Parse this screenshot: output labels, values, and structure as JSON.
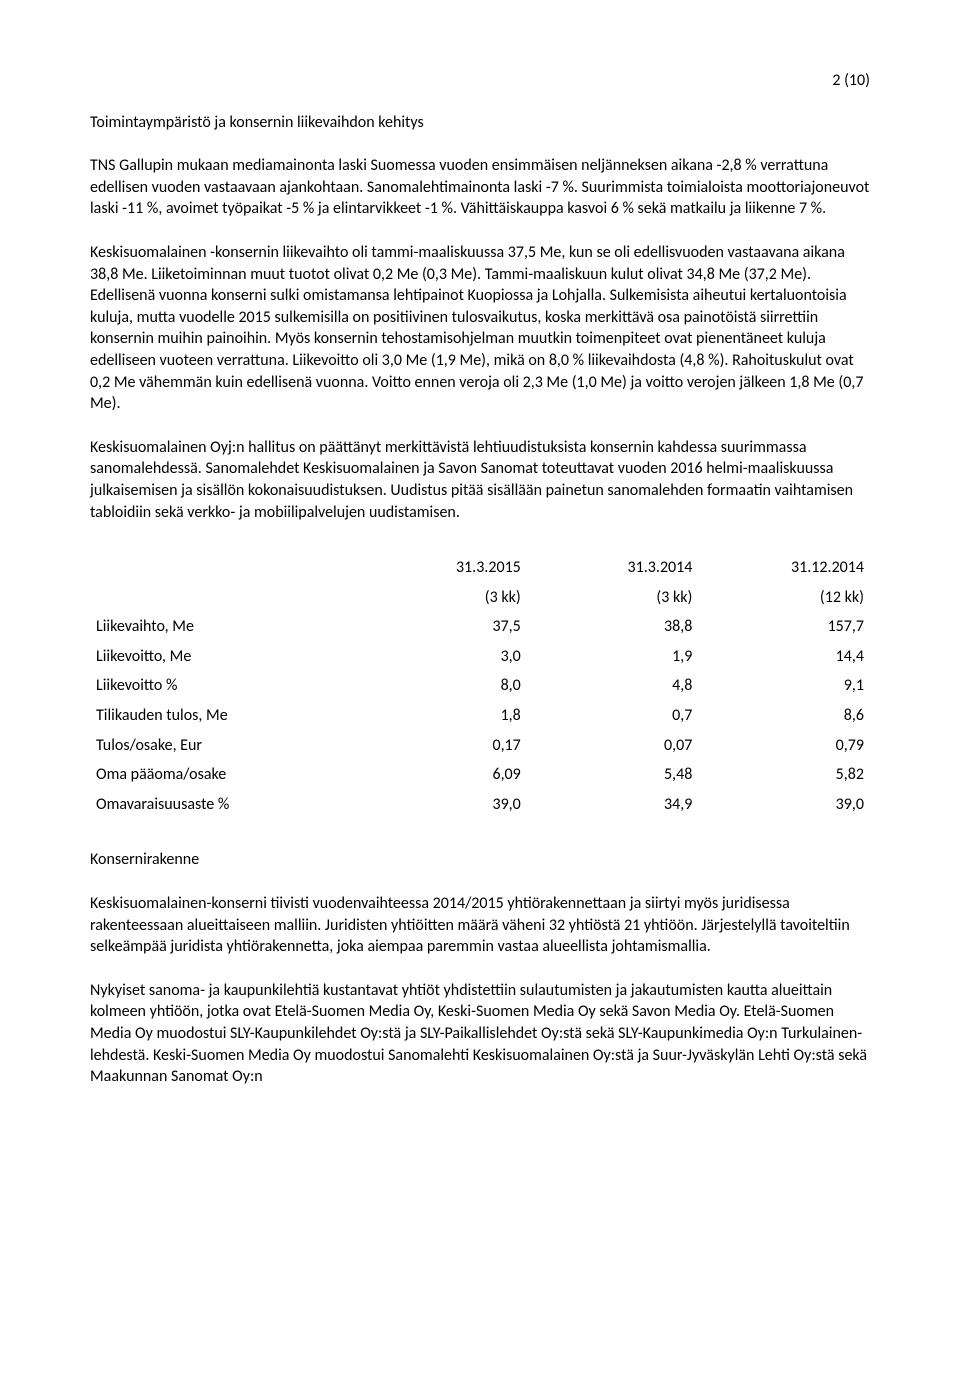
{
  "page_number": "2 (10)",
  "section_title": "Toimintaympäristö ja konsernin liikevaihdon kehitys",
  "paragraphs": {
    "p1": "TNS Gallupin mukaan mediamainonta laski Suomessa vuoden ensimmäisen neljänneksen aikana -2,8 % verrattuna edellisen vuoden vastaavaan ajankohtaan. Sanomalehtimainonta laski -7 %. Suurimmista toimialoista moottoriajoneuvot laski -11 %, avoimet työpaikat -5 % ja elintarvikkeet -1 %. Vähittäiskauppa kasvoi 6 % sekä matkailu ja liikenne 7 %.",
    "p2": "Keskisuomalainen -konsernin liikevaihto oli tammi-maaliskuussa 37,5 Me, kun se oli edellisvuoden vastaavana aikana 38,8 Me. Liiketoiminnan muut tuotot olivat 0,2 Me (0,3 Me). Tammi-maaliskuun kulut olivat 34,8 Me (37,2 Me). Edellisenä vuonna konserni sulki omistamansa lehtipainot Kuopiossa ja Lohjalla. Sulkemisista aiheutui kertaluontoisia kuluja, mutta vuodelle 2015 sulkemisilla on positiivinen tulosvaikutus, koska merkittävä osa painotöistä siirrettiin konsernin muihin painoihin. Myös konsernin tehostamisohjelman muutkin toimenpiteet ovat pienentäneet kuluja edelliseen vuoteen verrattuna. Liikevoitto oli 3,0 Me (1,9 Me), mikä on 8,0 % liikevaihdosta (4,8 %). Rahoituskulut ovat 0,2 Me vähemmän kuin edellisenä vuonna. Voitto ennen veroja oli 2,3 Me (1,0 Me) ja voitto verojen jälkeen 1,8 Me (0,7 Me).",
    "p3": "Keskisuomalainen Oyj:n hallitus on päättänyt merkittävistä lehtiuudistuksista konsernin kahdessa suurimmassa sanomalehdessä. Sanomalehdet Keskisuomalainen ja Savon Sanomat toteuttavat vuoden 2016 helmi-maaliskuussa julkaisemisen ja sisällön kokonaisuudistuksen. Uudistus pitää sisällään painetun sanomalehden formaatin vaihtamisen tabloidiin sekä verkko- ja mobiilipalvelujen uudistamisen."
  },
  "table": {
    "header": {
      "dates": [
        "31.3.2015",
        "31.3.2014",
        "31.12.2014"
      ],
      "periods": [
        "(3 kk)",
        "(3 kk)",
        "(12 kk)"
      ]
    },
    "rows": [
      {
        "label": "Liikevaihto, Me",
        "v1": "37,5",
        "v2": "38,8",
        "v3": "157,7"
      },
      {
        "label": "Liikevoitto, Me",
        "v1": "3,0",
        "v2": "1,9",
        "v3": "14,4"
      },
      {
        "label": "Liikevoitto %",
        "v1": "8,0",
        "v2": "4,8",
        "v3": "9,1"
      },
      {
        "label": "Tilikauden tulos, Me",
        "v1": "1,8",
        "v2": "0,7",
        "v3": "8,6"
      },
      {
        "label": "Tulos/osake, Eur",
        "v1": "0,17",
        "v2": "0,07",
        "v3": "0,79"
      },
      {
        "label": "Oma pääoma/osake",
        "v1": "6,09",
        "v2": "5,48",
        "v3": "5,82"
      },
      {
        "label": "Omavaraisuusaste %",
        "v1": "39,0",
        "v2": "34,9",
        "v3": "39,0"
      }
    ]
  },
  "subheading": "Konsernirakenne",
  "paragraphs2": {
    "p4": "Keskisuomalainen-konserni tiivisti vuodenvaihteessa 2014/2015 yhtiörakennettaan ja siirtyi myös juridisessa rakenteessaan alueittaiseen malliin. Juridisten yhtiöitten määrä väheni 32 yhtiöstä 21 yhtiöön. Järjestelyllä tavoiteltiin selkeämpää juridista yhtiörakennetta, joka aiempaa paremmin vastaa alueellista johtamismallia.",
    "p5": "Nykyiset sanoma- ja kaupunkilehtiä kustantavat yhtiöt yhdistettiin sulautumisten ja jakautumisten kautta alueittain kolmeen yhtiöön, jotka ovat Etelä-Suomen Media Oy, Keski-Suomen Media Oy sekä Savon Media Oy. Etelä-Suomen Media Oy muodostui SLY-Kaupunkilehdet Oy:stä ja SLY-Paikallislehdet Oy:stä sekä SLY-Kaupunkimedia Oy:n Turkulainen-lehdestä. Keski-Suomen Media Oy muodostui Sanomalehti Keskisuomalainen Oy:stä ja Suur-Jyväskylän Lehti Oy:stä sekä Maakunnan Sanomat Oy:n"
  }
}
